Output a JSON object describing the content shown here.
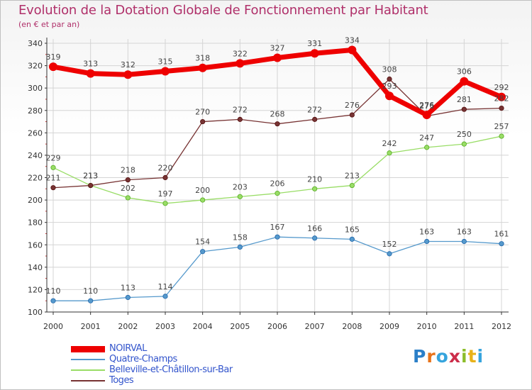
{
  "brand": "Proxiti",
  "chart_data": {
    "type": "line",
    "title": "Evolution de la Dotation Globale de Fonctionnement par Habitant",
    "subtitle": "(en € et par an)",
    "xlabel": "",
    "ylabel": "",
    "ylim": [
      100,
      340
    ],
    "ytick_step": 20,
    "grid": true,
    "legend_position": "bottom-left",
    "categories": [
      "2000",
      "2001",
      "2002",
      "2003",
      "2004",
      "2005",
      "2006",
      "2007",
      "2008",
      "2009",
      "2010",
      "2011",
      "2012"
    ],
    "series": [
      {
        "name": "NOIRVAL",
        "color": "#ee0000",
        "line_width": "thick",
        "values": [
          319,
          313,
          312,
          315,
          318,
          322,
          327,
          331,
          334,
          293,
          276,
          306,
          292
        ]
      },
      {
        "name": "Quatre-Champs",
        "color": "#5599cc",
        "line_width": "thin",
        "values": [
          110,
          110,
          113,
          114,
          154,
          158,
          167,
          166,
          165,
          152,
          163,
          163,
          161
        ]
      },
      {
        "name": "Belleville-et-Châtillon-sur-Bar",
        "color": "#99dd66",
        "line_width": "thin",
        "values": [
          229,
          213,
          202,
          197,
          200,
          203,
          206,
          210,
          213,
          242,
          247,
          250,
          257
        ]
      },
      {
        "name": "Toges",
        "color": "#773333",
        "line_width": "thin",
        "values": [
          211,
          213,
          218,
          220,
          270,
          272,
          268,
          272,
          276,
          308,
          275,
          281,
          282
        ]
      }
    ]
  }
}
